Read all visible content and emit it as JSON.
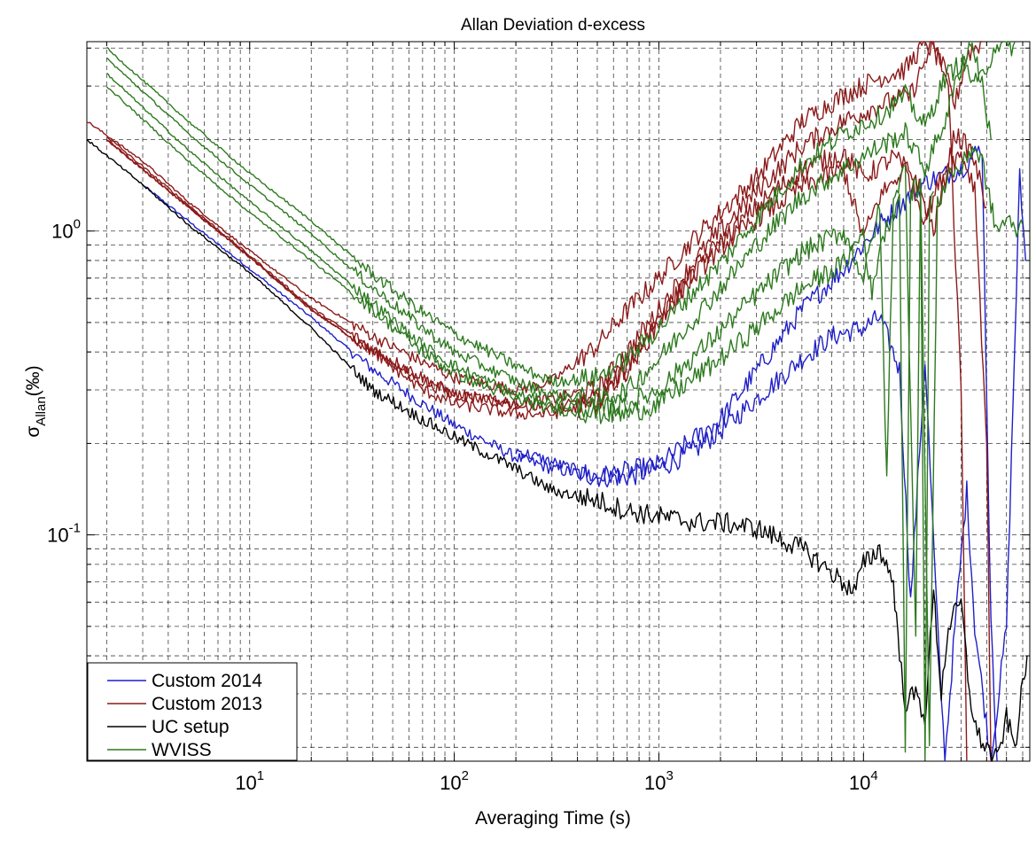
{
  "chart_data": {
    "type": "line",
    "title": "Allan Deviation d-excess",
    "xlabel": "Averaging Time (s)",
    "ylabel_main": "σ",
    "ylabel_sub": "Allan",
    "ylabel_unit": "(‰)",
    "x_scale": "log",
    "y_scale": "log",
    "xlim": [
      1.6,
      65000
    ],
    "ylim": [
      0.018,
      4.2
    ],
    "x_ticks": [
      {
        "value": 10,
        "base": "10",
        "exp": "1"
      },
      {
        "value": 100,
        "base": "10",
        "exp": "2"
      },
      {
        "value": 1000,
        "base": "10",
        "exp": "3"
      },
      {
        "value": 10000,
        "base": "10",
        "exp": "4"
      }
    ],
    "y_ticks": [
      {
        "value": 0.1,
        "base": "10",
        "exp": "-1"
      },
      {
        "value": 1,
        "base": "10",
        "exp": "0"
      }
    ],
    "grid": true,
    "legend_position": "bottom-left",
    "colors": {
      "blue": "#1f1fc8",
      "darkred": "#8c1a1a",
      "black": "#000000",
      "green": "#2d7a1f"
    },
    "series": [
      {
        "name": "Custom 2014",
        "color": "#1f1fc8",
        "points": [
          [
            3,
            1.42
          ],
          [
            5,
            1.08
          ],
          [
            10,
            0.75
          ],
          [
            20,
            0.52
          ],
          [
            40,
            0.35
          ],
          [
            70,
            0.27
          ],
          [
            100,
            0.23
          ],
          [
            200,
            0.18
          ],
          [
            300,
            0.165
          ],
          [
            500,
            0.155
          ],
          [
            700,
            0.155
          ],
          [
            1000,
            0.165
          ],
          [
            1500,
            0.19
          ],
          [
            2000,
            0.22
          ],
          [
            3000,
            0.28
          ],
          [
            5000,
            0.38
          ],
          [
            7000,
            0.45
          ],
          [
            10000,
            0.48
          ],
          [
            12000,
            0.52
          ],
          [
            15000,
            0.35
          ],
          [
            17000,
            0.06
          ],
          [
            20000,
            0.38
          ],
          [
            23000,
            0.05
          ],
          [
            25000,
            0.018
          ],
          [
            28000,
            0.05
          ],
          [
            32000,
            0.14
          ],
          [
            35000,
            0.05
          ],
          [
            42000,
            0.018
          ],
          [
            50000,
            0.05
          ],
          [
            58000,
            1.5
          ],
          [
            62000,
            0.8
          ]
        ]
      },
      {
        "name": "",
        "color": "#1f1fc8",
        "points": [
          [
            200,
            0.19
          ],
          [
            500,
            0.155
          ],
          [
            1000,
            0.17
          ],
          [
            2000,
            0.24
          ],
          [
            5000,
            0.55
          ],
          [
            8000,
            0.75
          ],
          [
            12000,
            1.05
          ],
          [
            20000,
            1.45
          ],
          [
            30000,
            1.6
          ],
          [
            38000,
            1.9
          ],
          [
            42000,
            0.05
          ],
          [
            45000,
            0.018
          ]
        ]
      },
      {
        "name": "Custom 2013",
        "color": "#8c1a1a",
        "points": [
          [
            1.6,
            2.3
          ],
          [
            3,
            1.7
          ],
          [
            5,
            1.25
          ],
          [
            10,
            0.86
          ],
          [
            20,
            0.6
          ],
          [
            40,
            0.45
          ],
          [
            70,
            0.37
          ],
          [
            100,
            0.33
          ],
          [
            200,
            0.3
          ],
          [
            300,
            0.32
          ],
          [
            500,
            0.42
          ],
          [
            700,
            0.55
          ],
          [
            1000,
            0.7
          ],
          [
            1500,
            0.95
          ],
          [
            2000,
            1.15
          ],
          [
            3000,
            1.5
          ],
          [
            5000,
            2.3
          ],
          [
            8000,
            2.8
          ],
          [
            12000,
            3.2
          ],
          [
            16000,
            3.4
          ],
          [
            20000,
            4.2
          ],
          [
            24000,
            3.6
          ],
          [
            28000,
            2.6
          ],
          [
            32000,
            3.8
          ],
          [
            38000,
            4.2
          ]
        ]
      },
      {
        "name": "",
        "color": "#8c1a1a",
        "points": [
          [
            2,
            2.0
          ],
          [
            5,
            1.2
          ],
          [
            10,
            0.82
          ],
          [
            20,
            0.55
          ],
          [
            40,
            0.4
          ],
          [
            70,
            0.32
          ],
          [
            100,
            0.29
          ],
          [
            200,
            0.27
          ],
          [
            300,
            0.28
          ],
          [
            500,
            0.3
          ],
          [
            700,
            0.4
          ],
          [
            1000,
            0.55
          ],
          [
            1500,
            0.8
          ],
          [
            2000,
            1.0
          ],
          [
            3000,
            1.35
          ],
          [
            5000,
            1.9
          ],
          [
            8000,
            2.3
          ],
          [
            12000,
            2.6
          ],
          [
            17000,
            2.8
          ],
          [
            22000,
            4.2
          ],
          [
            26000,
            3.0
          ],
          [
            30000,
            0.3
          ],
          [
            32000,
            0.018
          ]
        ]
      },
      {
        "name": "",
        "color": "#8c1a1a",
        "points": [
          [
            2,
            2.05
          ],
          [
            5,
            1.22
          ],
          [
            10,
            0.83
          ],
          [
            20,
            0.56
          ],
          [
            40,
            0.41
          ],
          [
            70,
            0.33
          ],
          [
            100,
            0.29
          ],
          [
            200,
            0.27
          ],
          [
            300,
            0.26
          ],
          [
            500,
            0.28
          ],
          [
            700,
            0.35
          ],
          [
            1000,
            0.5
          ],
          [
            1500,
            0.75
          ],
          [
            2000,
            0.92
          ],
          [
            3000,
            1.2
          ],
          [
            5000,
            1.6
          ],
          [
            8000,
            1.8
          ],
          [
            10000,
            1.5
          ],
          [
            14000,
            1.75
          ],
          [
            18000,
            1.5
          ],
          [
            22000,
            1.0
          ],
          [
            28000,
            2.1
          ],
          [
            34000,
            1.8
          ],
          [
            40000,
            1.2
          ]
        ]
      },
      {
        "name": "",
        "color": "#8c1a1a",
        "points": [
          [
            2,
            2.0
          ],
          [
            5,
            1.2
          ],
          [
            10,
            0.82
          ],
          [
            20,
            0.55
          ],
          [
            40,
            0.4
          ],
          [
            70,
            0.3
          ],
          [
            100,
            0.27
          ],
          [
            200,
            0.25
          ],
          [
            300,
            0.25
          ],
          [
            500,
            0.27
          ],
          [
            700,
            0.36
          ],
          [
            1000,
            0.52
          ],
          [
            1500,
            0.72
          ],
          [
            2000,
            0.88
          ],
          [
            3000,
            1.1
          ],
          [
            5000,
            1.4
          ],
          [
            8000,
            1.6
          ],
          [
            10000,
            0.95
          ],
          [
            12000,
            1.3
          ],
          [
            16000,
            1.6
          ],
          [
            20000,
            1.1
          ],
          [
            25000,
            1.6
          ],
          [
            30000,
            1.8
          ],
          [
            35000,
            1.4
          ],
          [
            40000,
            0.2
          ],
          [
            42000,
            0.018
          ]
        ]
      },
      {
        "name": "UC setup",
        "color": "#000000",
        "points": [
          [
            1.6,
            2.0
          ],
          [
            3,
            1.42
          ],
          [
            5,
            1.05
          ],
          [
            10,
            0.73
          ],
          [
            20,
            0.48
          ],
          [
            40,
            0.3
          ],
          [
            70,
            0.24
          ],
          [
            100,
            0.21
          ],
          [
            200,
            0.165
          ],
          [
            300,
            0.14
          ],
          [
            500,
            0.13
          ],
          [
            700,
            0.12
          ],
          [
            1000,
            0.115
          ],
          [
            1500,
            0.11
          ],
          [
            2000,
            0.11
          ],
          [
            3000,
            0.105
          ],
          [
            5000,
            0.09
          ],
          [
            7000,
            0.075
          ],
          [
            9000,
            0.065
          ],
          [
            10000,
            0.08
          ],
          [
            12000,
            0.09
          ],
          [
            14000,
            0.07
          ],
          [
            15000,
            0.04
          ],
          [
            16000,
            0.028
          ],
          [
            18000,
            0.03
          ],
          [
            20000,
            0.025
          ],
          [
            22000,
            0.065
          ],
          [
            24000,
            0.03
          ],
          [
            26000,
            0.05
          ],
          [
            30000,
            0.06
          ],
          [
            33000,
            0.03
          ],
          [
            36000,
            0.022
          ],
          [
            40000,
            0.02
          ],
          [
            45000,
            0.018
          ],
          [
            50000,
            0.025
          ],
          [
            55000,
            0.02
          ],
          [
            60000,
            0.032
          ],
          [
            63000,
            0.04
          ]
        ]
      },
      {
        "name": "WVISS",
        "color": "#2d7a1f",
        "points": [
          [
            2,
            4.0
          ],
          [
            5,
            2.3
          ],
          [
            10,
            1.55
          ],
          [
            20,
            1.08
          ],
          [
            40,
            0.72
          ],
          [
            70,
            0.54
          ],
          [
            100,
            0.46
          ],
          [
            200,
            0.36
          ],
          [
            300,
            0.32
          ],
          [
            500,
            0.33
          ],
          [
            700,
            0.38
          ],
          [
            1000,
            0.48
          ],
          [
            1500,
            0.64
          ],
          [
            2000,
            0.78
          ],
          [
            3000,
            1.1
          ],
          [
            5000,
            1.65
          ],
          [
            8000,
            2.1
          ],
          [
            12000,
            2.4
          ],
          [
            16000,
            2.8
          ],
          [
            20000,
            2.2
          ],
          [
            25000,
            3.2
          ],
          [
            30000,
            3.6
          ],
          [
            36000,
            3.0
          ],
          [
            40000,
            3.5
          ],
          [
            45000,
            4.2
          ],
          [
            50000,
            3.9
          ],
          [
            55000,
            4.2
          ]
        ]
      },
      {
        "name": "",
        "color": "#2d7a1f",
        "points": [
          [
            2,
            3.7
          ],
          [
            5,
            2.1
          ],
          [
            10,
            1.42
          ],
          [
            20,
            0.98
          ],
          [
            40,
            0.65
          ],
          [
            70,
            0.48
          ],
          [
            100,
            0.4
          ],
          [
            200,
            0.32
          ],
          [
            300,
            0.29
          ],
          [
            500,
            0.28
          ],
          [
            700,
            0.3
          ],
          [
            1000,
            0.38
          ],
          [
            1500,
            0.52
          ],
          [
            2000,
            0.65
          ],
          [
            3000,
            0.9
          ],
          [
            5000,
            1.3
          ],
          [
            8000,
            1.6
          ],
          [
            12000,
            1.9
          ],
          [
            16000,
            2.1
          ],
          [
            20000,
            1.6
          ],
          [
            25000,
            2.3
          ],
          [
            30000,
            3.5
          ],
          [
            34000,
            4.2
          ],
          [
            38000,
            3.0
          ],
          [
            42000,
            2.0
          ]
        ]
      },
      {
        "name": "",
        "color": "#2d7a1f",
        "points": [
          [
            2,
            3.3
          ],
          [
            5,
            1.85
          ],
          [
            10,
            1.25
          ],
          [
            20,
            0.86
          ],
          [
            40,
            0.58
          ],
          [
            70,
            0.42
          ],
          [
            100,
            0.36
          ],
          [
            200,
            0.29
          ],
          [
            300,
            0.27
          ],
          [
            500,
            0.26
          ],
          [
            700,
            0.27
          ],
          [
            1000,
            0.3
          ],
          [
            1500,
            0.39
          ],
          [
            2000,
            0.47
          ],
          [
            3000,
            0.62
          ],
          [
            5000,
            0.85
          ],
          [
            8000,
            1.0
          ],
          [
            10000,
            0.7
          ],
          [
            12000,
            1.2
          ],
          [
            13000,
            0.15
          ],
          [
            14000,
            1.3
          ],
          [
            16000,
            1.6
          ],
          [
            18000,
            0.05
          ],
          [
            19000,
            1.4
          ],
          [
            21000,
            0.02
          ],
          [
            23000,
            1.2
          ],
          [
            26000,
            1.55
          ],
          [
            30000,
            1.6
          ],
          [
            34000,
            1.9
          ],
          [
            38000,
            1.7
          ],
          [
            42000,
            1.2
          ],
          [
            45000,
            1.0
          ],
          [
            50000,
            1.1
          ],
          [
            55000,
            1.0
          ],
          [
            60000,
            1.05
          ]
        ]
      },
      {
        "name": "",
        "color": "#2d7a1f",
        "points": [
          [
            2,
            3.0
          ],
          [
            5,
            1.7
          ],
          [
            10,
            1.15
          ],
          [
            20,
            0.8
          ],
          [
            40,
            0.55
          ],
          [
            70,
            0.4
          ],
          [
            100,
            0.34
          ],
          [
            200,
            0.28
          ],
          [
            300,
            0.26
          ],
          [
            500,
            0.25
          ],
          [
            700,
            0.25
          ],
          [
            1000,
            0.27
          ],
          [
            1500,
            0.33
          ],
          [
            2000,
            0.38
          ],
          [
            3000,
            0.48
          ],
          [
            5000,
            0.65
          ],
          [
            8000,
            0.78
          ],
          [
            10000,
            1.0
          ],
          [
            11000,
            0.6
          ],
          [
            12000,
            0.9
          ],
          [
            15000,
            1.3
          ],
          [
            16000,
            0.02
          ],
          [
            17000,
            1.35
          ],
          [
            19000,
            1.4
          ],
          [
            20000,
            0.018
          ],
          [
            21000,
            1.2
          ],
          [
            22000,
            1.35
          ]
        ]
      }
    ]
  }
}
